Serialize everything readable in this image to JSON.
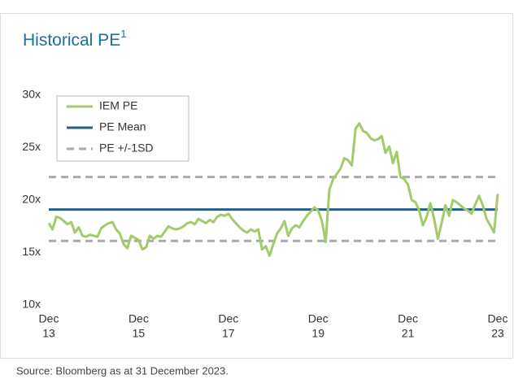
{
  "chart_data": {
    "type": "line",
    "title": "Historical PE",
    "title_superscript": "1",
    "source": "Source: Bloomberg as at 31 December 2023.",
    "x": [
      "2013-12",
      "2014-01",
      "2014-02",
      "2014-03",
      "2014-04",
      "2014-05",
      "2014-06",
      "2014-07",
      "2014-08",
      "2014-09",
      "2014-10",
      "2014-11",
      "2014-12",
      "2015-01",
      "2015-02",
      "2015-03",
      "2015-04",
      "2015-05",
      "2015-06",
      "2015-07",
      "2015-08",
      "2015-09",
      "2015-10",
      "2015-11",
      "2015-12",
      "2016-01",
      "2016-02",
      "2016-03",
      "2016-04",
      "2016-05",
      "2016-06",
      "2016-07",
      "2016-08",
      "2016-09",
      "2016-10",
      "2016-11",
      "2016-12",
      "2017-01",
      "2017-02",
      "2017-03",
      "2017-04",
      "2017-05",
      "2017-06",
      "2017-07",
      "2017-08",
      "2017-09",
      "2017-10",
      "2017-11",
      "2017-12",
      "2018-01",
      "2018-02",
      "2018-03",
      "2018-04",
      "2018-05",
      "2018-06",
      "2018-07",
      "2018-08",
      "2018-09",
      "2018-10",
      "2018-11",
      "2018-12",
      "2019-01",
      "2019-02",
      "2019-03",
      "2019-04",
      "2019-05",
      "2019-06",
      "2019-07",
      "2019-08",
      "2019-09",
      "2019-10",
      "2019-11",
      "2019-12",
      "2020-01",
      "2020-02",
      "2020-03",
      "2020-04",
      "2020-05",
      "2020-06",
      "2020-07",
      "2020-08",
      "2020-09",
      "2020-10",
      "2020-11",
      "2020-12",
      "2021-01",
      "2021-02",
      "2021-03",
      "2021-04",
      "2021-05",
      "2021-06",
      "2021-07",
      "2021-08",
      "2021-09",
      "2021-10",
      "2021-11",
      "2021-12",
      "2022-01",
      "2022-02",
      "2022-03",
      "2022-04",
      "2022-05",
      "2022-06",
      "2022-07",
      "2022-08",
      "2022-09",
      "2022-10",
      "2022-11",
      "2022-12",
      "2023-01",
      "2023-02",
      "2023-03",
      "2023-04",
      "2023-05",
      "2023-06",
      "2023-07",
      "2023-08",
      "2023-09",
      "2023-10",
      "2023-11",
      "2023-12"
    ],
    "series": [
      {
        "name": "IEM PE",
        "color": "#a2cb6b",
        "values": [
          17.8,
          17.2,
          18.4,
          18.3,
          18.0,
          17.7,
          17.9,
          16.9,
          17.4,
          16.6,
          16.5,
          16.7,
          16.6,
          16.5,
          17.3,
          17.6,
          17.8,
          17.9,
          17.2,
          16.8,
          15.8,
          15.4,
          16.6,
          16.4,
          16.2,
          15.3,
          15.5,
          16.6,
          16.3,
          16.6,
          16.5,
          17.0,
          17.5,
          17.3,
          17.2,
          17.3,
          17.5,
          17.8,
          17.9,
          17.7,
          18.2,
          18.0,
          17.8,
          18.1,
          17.9,
          18.4,
          18.6,
          18.5,
          18.7,
          18.2,
          17.8,
          17.4,
          17.1,
          16.9,
          17.2,
          17.0,
          17.2,
          15.3,
          15.6,
          14.7,
          15.8,
          16.8,
          17.3,
          18.0,
          16.6,
          17.3,
          17.6,
          17.4,
          18.0,
          18.5,
          18.9,
          19.3,
          19.0,
          18.0,
          16.0,
          21.0,
          22.0,
          22.5,
          23.0,
          24.0,
          23.8,
          23.3,
          26.8,
          27.3,
          26.6,
          26.4,
          25.9,
          25.7,
          25.8,
          26.1,
          24.5,
          25.1,
          23.5,
          24.6,
          22.2,
          22.0,
          21.5,
          20.0,
          19.8,
          19.0,
          17.6,
          18.4,
          19.7,
          18.2,
          16.3,
          17.8,
          19.5,
          18.5,
          20.0,
          19.8,
          19.5,
          19.2,
          19.0,
          18.7,
          19.6,
          20.4,
          19.5,
          18.2,
          17.6,
          16.9,
          20.6
        ]
      }
    ],
    "reference_lines": [
      {
        "name": "PE Mean",
        "color": "#1f5f8b",
        "style": "solid",
        "values": [
          19.1
        ]
      },
      {
        "name": "PE +/-1SD",
        "color": "#aaaaaa",
        "style": "dashed",
        "values": [
          22.2,
          16.1
        ]
      }
    ],
    "ylim": [
      10,
      30
    ],
    "yticks": [
      {
        "value": 10,
        "label": "10x"
      },
      {
        "value": 15,
        "label": "15x"
      },
      {
        "value": 20,
        "label": "20x"
      },
      {
        "value": 25,
        "label": "25x"
      },
      {
        "value": 30,
        "label": "30x"
      }
    ],
    "xticks": [
      {
        "value": "2013-12",
        "label": [
          "Dec",
          "13"
        ]
      },
      {
        "value": "2015-12",
        "label": [
          "Dec",
          "15"
        ]
      },
      {
        "value": "2017-12",
        "label": [
          "Dec",
          "17"
        ]
      },
      {
        "value": "2019-12",
        "label": [
          "Dec",
          "19"
        ]
      },
      {
        "value": "2021-12",
        "label": [
          "Dec",
          "21"
        ]
      },
      {
        "value": "2023-12",
        "label": [
          "Dec",
          "23"
        ]
      }
    ],
    "legend": "upper left"
  }
}
